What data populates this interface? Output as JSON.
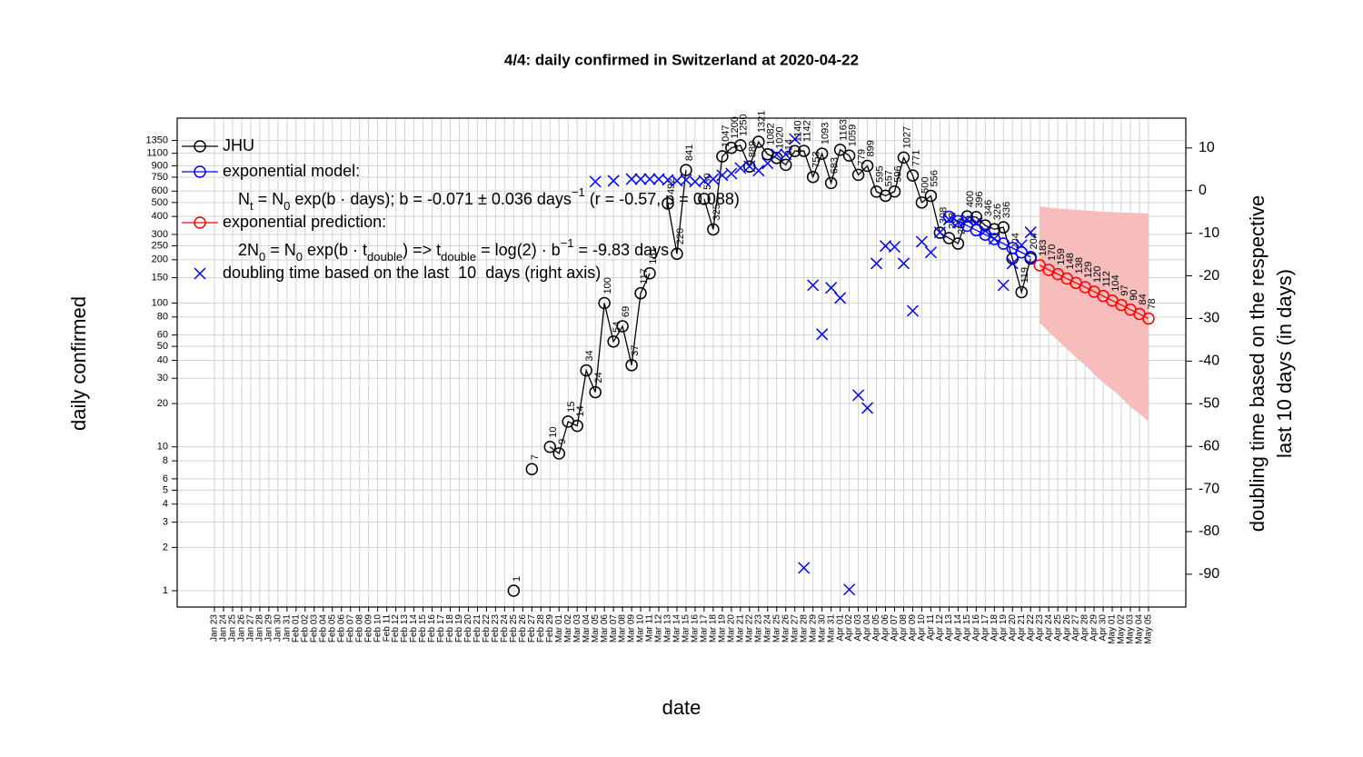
{
  "chart_data": {
    "type": "line",
    "title": "4/4: daily confirmed in Switzerland at 2020-04-22",
    "xlabel": "date",
    "ylabel": "daily confirmed",
    "y2label": [
      "doubling time based on the respective",
      "last 10 days (in days)"
    ],
    "log_y": true,
    "grid": true,
    "legend": "top-left",
    "ylim": [
      0.77,
      1930
    ],
    "yticks": [
      1,
      2,
      3,
      4,
      5,
      6,
      8,
      10,
      20,
      30,
      40,
      50,
      60,
      80,
      100,
      150,
      200,
      250,
      300,
      400,
      500,
      600,
      750,
      900,
      1100,
      1350
    ],
    "y2lim": [
      -97.7,
      17
    ],
    "y2ticks": [
      10,
      0,
      -10,
      -20,
      -30,
      -40,
      -50,
      -60,
      -70,
      -80,
      -90
    ],
    "categories": [
      "Jan 23",
      "Jan 24",
      "Jan 25",
      "Jan 26",
      "Jan 27",
      "Jan 28",
      "Jan 29",
      "Jan 30",
      "Jan 31",
      "Feb 01",
      "Feb 02",
      "Feb 03",
      "Feb 04",
      "Feb 05",
      "Feb 06",
      "Feb 07",
      "Feb 08",
      "Feb 09",
      "Feb 10",
      "Feb 11",
      "Feb 12",
      "Feb 13",
      "Feb 14",
      "Feb 15",
      "Feb 16",
      "Feb 17",
      "Feb 18",
      "Feb 19",
      "Feb 20",
      "Feb 21",
      "Feb 22",
      "Feb 23",
      "Feb 24",
      "Feb 25",
      "Feb 26",
      "Feb 27",
      "Feb 28",
      "Feb 29",
      "Mar 01",
      "Mar 02",
      "Mar 03",
      "Mar 04",
      "Mar 05",
      "Mar 06",
      "Mar 07",
      "Mar 08",
      "Mar 09",
      "Mar 10",
      "Mar 11",
      "Mar 12",
      "Mar 13",
      "Mar 14",
      "Mar 15",
      "Mar 16",
      "Mar 17",
      "Mar 18",
      "Mar 19",
      "Mar 20",
      "Mar 21",
      "Mar 22",
      "Mar 23",
      "Mar 24",
      "Mar 25",
      "Mar 26",
      "Mar 27",
      "Mar 28",
      "Mar 29",
      "Mar 30",
      "Mar 31",
      "Apr 01",
      "Apr 02",
      "Apr 03",
      "Apr 04",
      "Apr 05",
      "Apr 06",
      "Apr 07",
      "Apr 08",
      "Apr 09",
      "Apr 10",
      "Apr 11",
      "Apr 12",
      "Apr 13",
      "Apr 14",
      "Apr 15",
      "Apr 16",
      "Apr 17",
      "Apr 18",
      "Apr 19",
      "Apr 20",
      "Apr 21",
      "Apr 22",
      "Apr 23",
      "Apr 24",
      "Apr 25",
      "Apr 26",
      "Apr 27",
      "Apr 28",
      "Apr 29",
      "Apr 30",
      "May 01",
      "May 02",
      "May 03",
      "May 04",
      "May 05"
    ],
    "series": [
      {
        "name": "JHU",
        "color": "#000000",
        "marker": "circle",
        "line": true,
        "labels": true,
        "values": [
          null,
          null,
          null,
          null,
          null,
          null,
          null,
          null,
          null,
          null,
          null,
          null,
          null,
          null,
          null,
          null,
          null,
          null,
          null,
          null,
          null,
          null,
          null,
          null,
          null,
          null,
          null,
          null,
          null,
          null,
          null,
          null,
          null,
          1,
          null,
          7,
          null,
          10,
          9,
          15,
          14,
          34,
          24,
          100,
          54,
          69,
          37,
          117,
          161,
          null,
          492,
          220,
          841,
          null,
          530,
          325,
          1047,
          1200,
          1250,
          889,
          1321,
          1082,
          1020,
          914,
          1140,
          1142,
          753,
          1093,
          683,
          1163,
          1059,
          779,
          899,
          595,
          557,
          596,
          1027,
          771,
          500,
          556,
          308,
          283,
          259,
          400,
          396,
          346,
          326,
          336,
          204,
          119,
          204,
          null,
          null,
          null,
          null,
          null,
          null,
          null,
          null,
          null,
          null,
          null,
          null,
          null
        ]
      },
      {
        "name": "exponential model:",
        "color": "#0000ff",
        "marker": "circle",
        "line": true,
        "labels": false,
        "legend_note": [
          {
            "text": "N"
          },
          {
            "text": "t",
            "shift": "sub"
          },
          {
            "text": " = N"
          },
          {
            "text": "0",
            "shift": "sub"
          },
          {
            "text": " exp(b · days); b = -0.071 ± 0.036 days"
          },
          {
            "text": "−1",
            "shift": "sup"
          },
          {
            "text": " (r = -0.57, p = 0.088)"
          }
        ],
        "values": [
          null,
          null,
          null,
          null,
          null,
          null,
          null,
          null,
          null,
          null,
          null,
          null,
          null,
          null,
          null,
          null,
          null,
          null,
          null,
          null,
          null,
          null,
          null,
          null,
          null,
          null,
          null,
          null,
          null,
          null,
          null,
          null,
          null,
          null,
          null,
          null,
          null,
          null,
          null,
          null,
          null,
          null,
          null,
          null,
          null,
          null,
          null,
          null,
          null,
          null,
          null,
          null,
          null,
          null,
          null,
          null,
          null,
          null,
          null,
          null,
          null,
          null,
          null,
          null,
          null,
          null,
          null,
          null,
          null,
          null,
          null,
          null,
          null,
          null,
          null,
          null,
          null,
          null,
          null,
          null,
          null,
          398,
          371,
          345,
          321,
          299,
          279,
          259,
          241,
          225,
          209,
          null,
          null,
          null,
          null,
          null,
          null,
          null,
          null,
          null,
          null,
          null,
          null,
          null
        ]
      },
      {
        "name": "exponential prediction:",
        "color": "#ff0000",
        "band_color": "#f7bcbc",
        "marker": "circle",
        "line": true,
        "labels": true,
        "legend_note": [
          {
            "text": "2N"
          },
          {
            "text": "0",
            "shift": "sub"
          },
          {
            "text": " = N"
          },
          {
            "text": "0",
            "shift": "sub"
          },
          {
            "text": " exp(b · t"
          },
          {
            "text": "double",
            "shift": "sub"
          },
          {
            "text": ") => t"
          },
          {
            "text": "double",
            "shift": "sub"
          },
          {
            "text": " = log(2) · b"
          },
          {
            "text": "−1",
            "shift": "sup"
          },
          {
            "text": " = -9.83 days"
          }
        ],
        "values": [
          null,
          null,
          null,
          null,
          null,
          null,
          null,
          null,
          null,
          null,
          null,
          null,
          null,
          null,
          null,
          null,
          null,
          null,
          null,
          null,
          null,
          null,
          null,
          null,
          null,
          null,
          null,
          null,
          null,
          null,
          null,
          null,
          null,
          null,
          null,
          null,
          null,
          null,
          null,
          null,
          null,
          null,
          null,
          null,
          null,
          null,
          null,
          null,
          null,
          null,
          null,
          null,
          null,
          null,
          null,
          null,
          null,
          null,
          null,
          null,
          null,
          null,
          null,
          null,
          null,
          null,
          null,
          null,
          null,
          null,
          null,
          null,
          null,
          null,
          null,
          null,
          null,
          null,
          null,
          null,
          null,
          null,
          null,
          null,
          null,
          null,
          null,
          null,
          null,
          null,
          null,
          183,
          170,
          159,
          148,
          138,
          129,
          120,
          112,
          104,
          97,
          90,
          84,
          78
        ],
        "lower": [
          null,
          null,
          null,
          null,
          null,
          null,
          null,
          null,
          null,
          null,
          null,
          null,
          null,
          null,
          null,
          null,
          null,
          null,
          null,
          null,
          null,
          null,
          null,
          null,
          null,
          null,
          null,
          null,
          null,
          null,
          null,
          null,
          null,
          null,
          null,
          null,
          null,
          null,
          null,
          null,
          null,
          null,
          null,
          null,
          null,
          null,
          null,
          null,
          null,
          null,
          null,
          null,
          null,
          null,
          null,
          null,
          null,
          null,
          null,
          null,
          null,
          null,
          null,
          null,
          null,
          null,
          null,
          null,
          null,
          null,
          null,
          null,
          null,
          null,
          null,
          null,
          null,
          null,
          null,
          null,
          null,
          null,
          null,
          null,
          null,
          null,
          null,
          null,
          null,
          null,
          null,
          73,
          63,
          55,
          48,
          42,
          37,
          32,
          28,
          25,
          22,
          19,
          17,
          15
        ],
        "upper": [
          null,
          null,
          null,
          null,
          null,
          null,
          null,
          null,
          null,
          null,
          null,
          null,
          null,
          null,
          null,
          null,
          null,
          null,
          null,
          null,
          null,
          null,
          null,
          null,
          null,
          null,
          null,
          null,
          null,
          null,
          null,
          null,
          null,
          null,
          null,
          null,
          null,
          null,
          null,
          null,
          null,
          null,
          null,
          null,
          null,
          null,
          null,
          null,
          null,
          null,
          null,
          null,
          null,
          null,
          null,
          null,
          null,
          null,
          null,
          null,
          null,
          null,
          null,
          null,
          null,
          null,
          null,
          null,
          null,
          null,
          null,
          null,
          null,
          null,
          null,
          null,
          null,
          null,
          null,
          null,
          null,
          null,
          null,
          null,
          null,
          null,
          null,
          null,
          null,
          null,
          null,
          470,
          462,
          455,
          450,
          445,
          440,
          436,
          432,
          429,
          426,
          424,
          422,
          420
        ]
      },
      {
        "name": "doubling time based on the last  10  days (right axis)",
        "color": "#0000ff",
        "marker": "x",
        "line": false,
        "labels": false,
        "axis": "y2",
        "values": [
          null,
          null,
          null,
          null,
          null,
          null,
          null,
          null,
          null,
          null,
          null,
          null,
          null,
          null,
          null,
          null,
          null,
          null,
          null,
          null,
          null,
          null,
          null,
          null,
          null,
          null,
          null,
          null,
          null,
          null,
          null,
          null,
          null,
          null,
          null,
          null,
          null,
          null,
          null,
          null,
          null,
          null,
          2.1,
          null,
          2.3,
          null,
          2.7,
          2.7,
          2.7,
          2.7,
          2.5,
          2.3,
          2.5,
          2.1,
          2.3,
          2.7,
          3.6,
          4.0,
          5.3,
          5.7,
          4.7,
          6.4,
          8.5,
          8.5,
          12.1,
          -88.5,
          -22.2,
          -33.7,
          -22.8,
          -25.2,
          -93.6,
          -48,
          -51,
          -17.1,
          -13,
          -13.2,
          -17.1,
          -28.2,
          -12,
          -14.5,
          -9.8,
          -6.8,
          -7.5,
          -6.8,
          -7.5,
          -9.4,
          -11.3,
          -22.2,
          -17.1,
          -12.8,
          -9.8,
          null,
          null,
          null,
          null,
          null,
          null,
          null,
          null,
          null,
          null,
          null,
          null,
          null
        ]
      }
    ]
  }
}
